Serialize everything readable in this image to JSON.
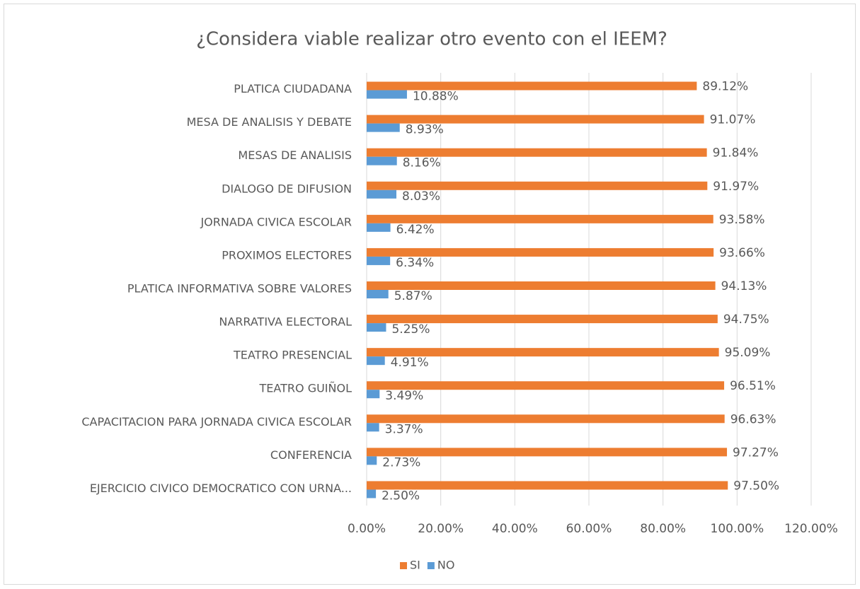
{
  "chart_data": {
    "type": "hbar",
    "title": "¿Considera viable realizar otro evento con el IEEM?",
    "categories": [
      "PLATICA CIUDADANA",
      "MESA DE ANALISIS Y DEBATE",
      "MESAS DE ANALISIS",
      "DIALOGO DE DIFUSION",
      "JORNADA CIVICA ESCOLAR",
      "PROXIMOS ELECTORES",
      "PLATICA INFORMATIVA SOBRE VALORES",
      "NARRATIVA ELECTORAL",
      "TEATRO PRESENCIAL",
      "TEATRO GUIÑOL",
      "CAPACITACION PARA JORNADA CIVICA ESCOLAR",
      "CONFERENCIA",
      "EJERCICIO CIVICO DEMOCRATICO CON URNA..."
    ],
    "series": [
      {
        "name": "SI",
        "color": "#ed7d31",
        "values": [
          89.12,
          91.07,
          91.84,
          91.97,
          93.58,
          93.66,
          94.13,
          94.75,
          95.09,
          96.51,
          96.63,
          97.27,
          97.5
        ],
        "value_labels": [
          "89.12%",
          "91.07%",
          "91.84%",
          "91.97%",
          "93.58%",
          "93.66%",
          "94.13%",
          "94.75%",
          "95.09%",
          "96.51%",
          "96.63%",
          "97.27%",
          "97.50%"
        ]
      },
      {
        "name": "NO",
        "color": "#5b9bd5",
        "values": [
          10.88,
          8.93,
          8.16,
          8.03,
          6.42,
          6.34,
          5.87,
          5.25,
          4.91,
          3.49,
          3.37,
          2.73,
          2.5
        ],
        "value_labels": [
          "10.88%",
          "8.93%",
          "8.16%",
          "8.03%",
          "6.42%",
          "6.34%",
          "5.87%",
          "5.25%",
          "4.91%",
          "3.49%",
          "3.37%",
          "2.73%",
          "2.50%"
        ]
      }
    ],
    "xlim": [
      0,
      120
    ],
    "xticks": [
      {
        "value": 0,
        "label": "0.00%"
      },
      {
        "value": 20,
        "label": "20.00%"
      },
      {
        "value": 40,
        "label": "40.00%"
      },
      {
        "value": 60,
        "label": "60.00%"
      },
      {
        "value": 80,
        "label": "80.00%"
      },
      {
        "value": 100,
        "label": "100.00%"
      },
      {
        "value": 120,
        "label": "120.00%"
      }
    ],
    "grid": true,
    "legend": "bottom"
  }
}
